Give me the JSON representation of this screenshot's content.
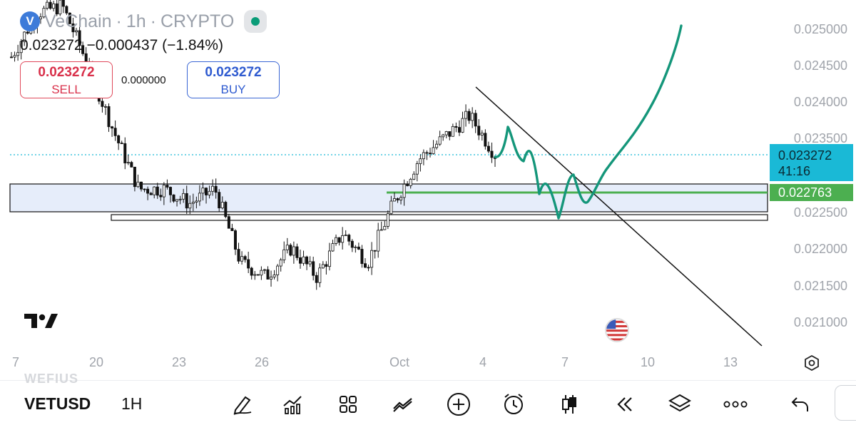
{
  "header": {
    "logo": "vechain-logo-icon",
    "symbol_name": "VeChain",
    "interval": "1h",
    "category": "CRYPTO",
    "separator": "·",
    "live_status": "market-open",
    "live_color": "#0a9c78"
  },
  "quote": {
    "price": "0.023272",
    "change": "−0.000437",
    "change_pct": "(−1.84%)"
  },
  "trade": {
    "sell_price": "0.023272",
    "sell_label": "SELL",
    "spread": "0.000000",
    "buy_price": "0.023272",
    "buy_label": "BUY"
  },
  "price_axis": [
    "0.025000",
    "0.024500",
    "0.024000",
    "0.023500",
    "0.023000",
    "0.022500",
    "0.022000",
    "0.021500",
    "0.021000"
  ],
  "current_price_tag": {
    "price": "0.023272",
    "countdown": "41:16",
    "color": "#1ab9d6"
  },
  "level_tag": {
    "price": "0.022763",
    "color": "#4caf50"
  },
  "time_axis": [
    "7",
    "20",
    "23",
    "26",
    "Oct",
    "4",
    "7",
    "10",
    "13"
  ],
  "colors": {
    "sell": "#d9304a",
    "buy": "#2f5bd0",
    "drawing_pen": "#14967a",
    "zone": "#e6edfa"
  },
  "toolbar": {
    "ghost_text": "WEFIUS",
    "symbol": "VETUSD",
    "timeframe": "1H",
    "tools": [
      "drawing-pen-icon",
      "indicators-icon",
      "layout-icon",
      "compare-icon",
      "add-icon",
      "alert-clock-icon",
      "candles-icon",
      "replay-icon",
      "layers-icon",
      "more-icon",
      "undo-icon"
    ]
  },
  "chart_data": {
    "type": "candlestick",
    "instrument": "VETUSD",
    "interval": "1h",
    "y_range": [
      0.0207,
      0.0254
    ],
    "price_labels": [
      0.025,
      0.0245,
      0.024,
      0.0235,
      0.023,
      0.0225,
      0.022,
      0.0215,
      0.021
    ],
    "last_price": 0.023272,
    "approx_close_path": [
      {
        "date": "Sep 18",
        "close": 0.0246
      },
      {
        "date": "Sep 19",
        "close": 0.0252
      },
      {
        "date": "Sep 20",
        "close": 0.0253
      },
      {
        "date": "Sep 21",
        "close": 0.0245
      },
      {
        "date": "Sep 22",
        "close": 0.0236
      },
      {
        "date": "Sep 22 late",
        "close": 0.0228
      },
      {
        "date": "Sep 23",
        "close": 0.0228
      },
      {
        "date": "Sep 24",
        "close": 0.0226
      },
      {
        "date": "Sep 25",
        "close": 0.0228
      },
      {
        "date": "Sep 26",
        "close": 0.0218
      },
      {
        "date": "Sep 27",
        "close": 0.0216
      },
      {
        "date": "Sep 28",
        "close": 0.022
      },
      {
        "date": "Sep 29",
        "close": 0.0216
      },
      {
        "date": "Sep 30",
        "close": 0.0222
      },
      {
        "date": "Oct 1",
        "close": 0.0218
      },
      {
        "date": "Oct 1 late",
        "close": 0.0226
      },
      {
        "date": "Oct 2",
        "close": 0.0232
      },
      {
        "date": "Oct 3",
        "close": 0.0235
      },
      {
        "date": "Oct 4",
        "close": 0.0238
      },
      {
        "date": "Oct 4 late",
        "close": 0.02327
      }
    ],
    "support_zone": [
      0.02253,
      0.02272
    ],
    "support_rect": [
      0.02238,
      0.02246
    ],
    "horizontal_level": 0.022763,
    "trendline": [
      {
        "date": "Oct 4",
        "price": 0.02418
      },
      {
        "date": "Oct 13",
        "price": 0.02074
      }
    ],
    "current_price_line": 0.023272,
    "projection_drawn": true
  }
}
